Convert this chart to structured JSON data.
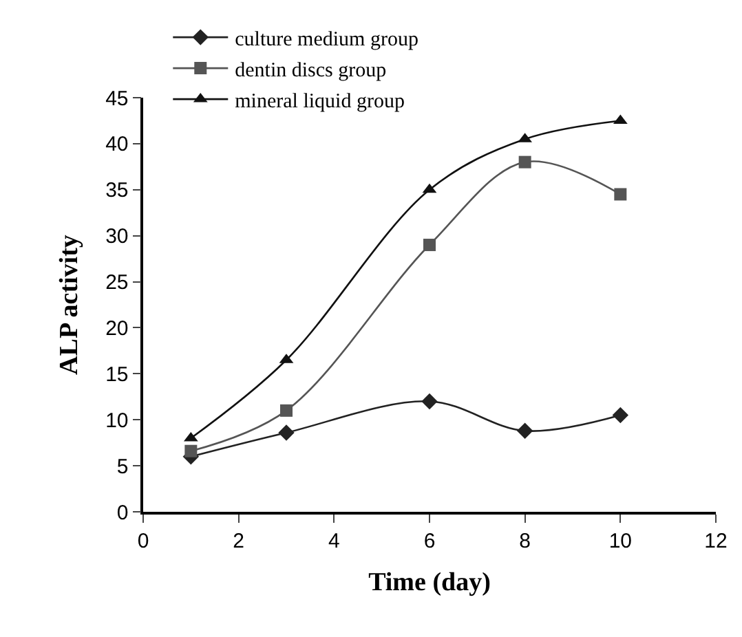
{
  "chart_data": {
    "type": "line",
    "xlabel": "Time (day)",
    "ylabel": "ALP activity",
    "x": [
      1,
      3,
      6,
      8,
      10
    ],
    "series": [
      {
        "name": "culture medium group",
        "color": "#222222",
        "marker": "diamond",
        "values": [
          6,
          8.6,
          12,
          8.8,
          10.5
        ]
      },
      {
        "name": "dentin discs group",
        "color": "#555555",
        "marker": "square",
        "values": [
          6.6,
          11,
          29,
          38,
          34.5
        ]
      },
      {
        "name": "mineral liquid group",
        "color": "#111111",
        "marker": "triangle",
        "values": [
          8,
          16.5,
          35,
          40.5,
          42.5
        ]
      }
    ],
    "xlim": [
      0,
      12
    ],
    "xticks": [
      0,
      2,
      4,
      6,
      8,
      10,
      12
    ],
    "ylim": [
      0,
      45
    ],
    "yticks": [
      0,
      5,
      10,
      15,
      20,
      25,
      30,
      35,
      40,
      45
    ],
    "legend": "top left",
    "line_style": "solid"
  }
}
